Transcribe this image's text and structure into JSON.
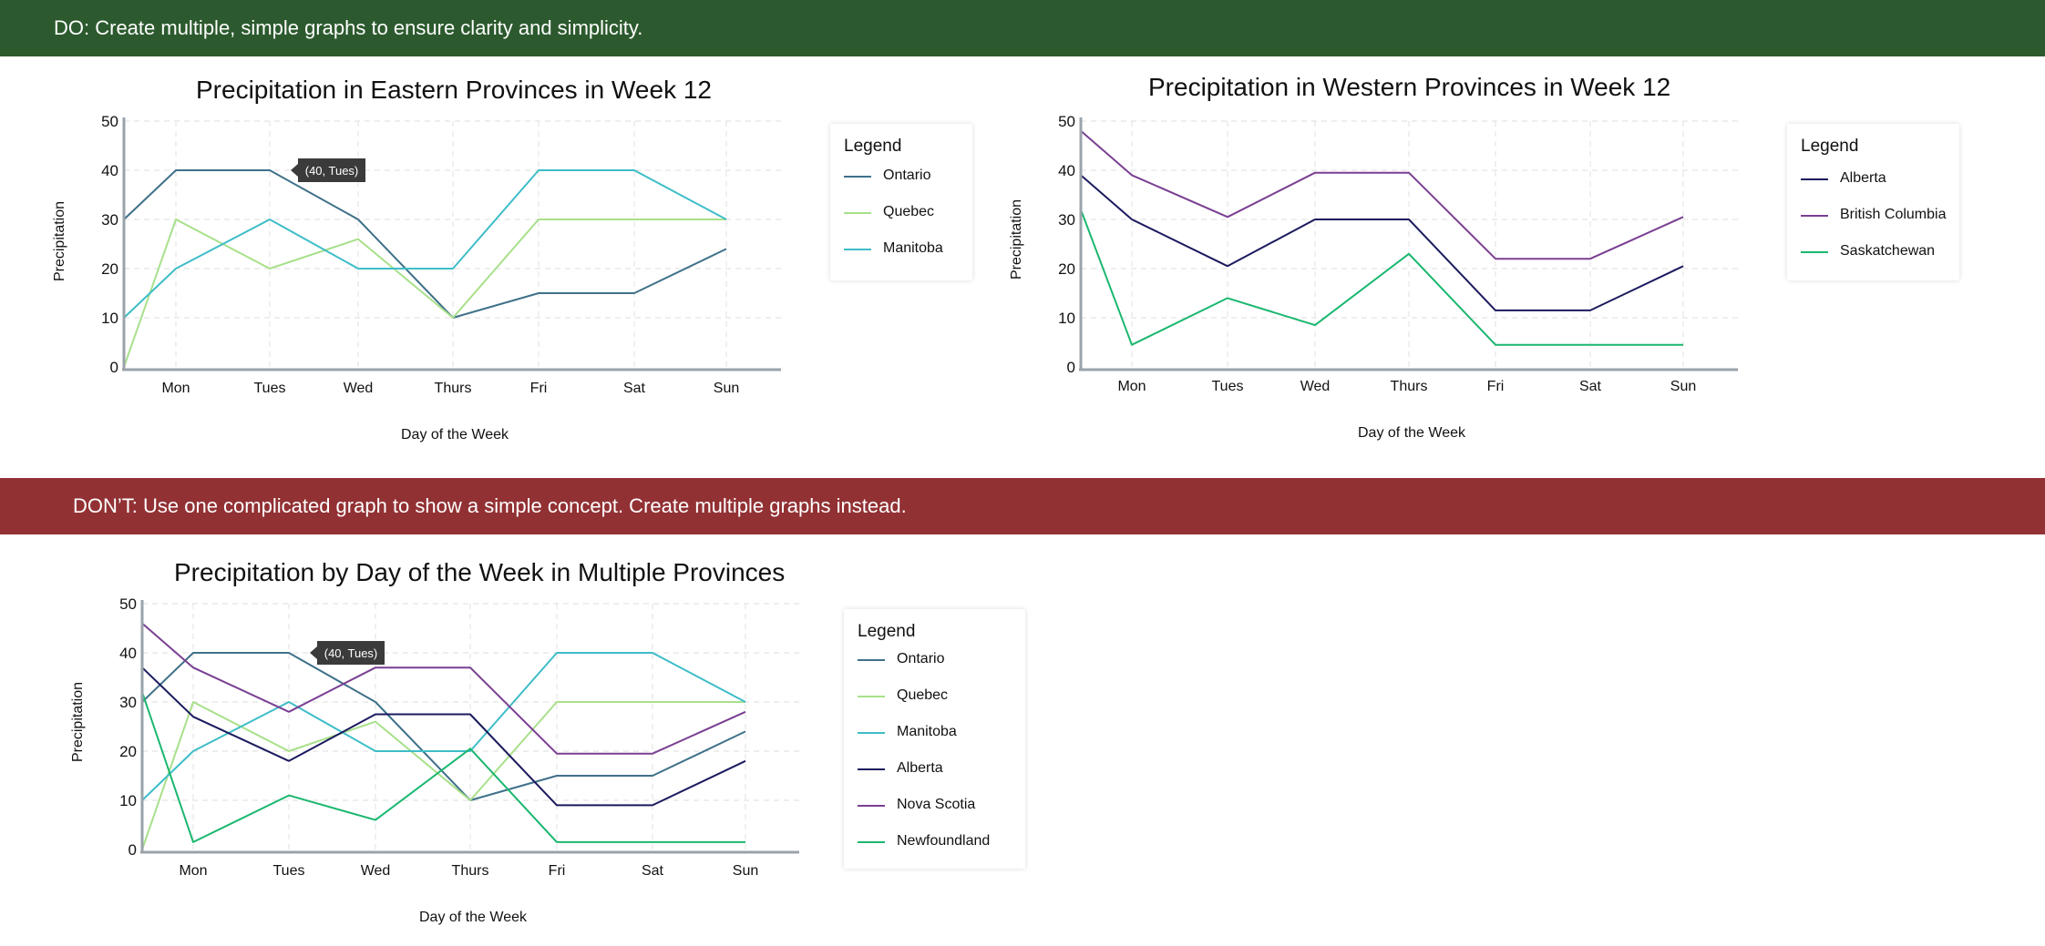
{
  "do_banner": "DO: Create multiple, simple graphs to ensure clarity and simplicity.",
  "dont_banner": "DON’T: Use one complicated graph to show a simple concept. Create multiple graphs instead.",
  "chart_data": [
    {
      "type": "line",
      "title": "Precipitation in Eastern Provinces  in Week 12",
      "xlabel": "Day of the Week",
      "ylabel": "Precipitation",
      "categories": [
        "Mon",
        "Tues",
        "Wed",
        "Thurs",
        "Fri",
        "Sat",
        "Sun"
      ],
      "ylim": [
        0,
        50
      ],
      "yticks": [
        0,
        10,
        20,
        30,
        40,
        50
      ],
      "grid": true,
      "legend": {
        "title": "Legend",
        "position": "right"
      },
      "tooltip": {
        "text": "(40, Tues)",
        "series": "Ontario",
        "category": "Tues"
      },
      "series": [
        {
          "name": "Ontario",
          "color": "#3f7189",
          "start": 30,
          "values": [
            40,
            40,
            30,
            10,
            15,
            15,
            24
          ]
        },
        {
          "name": "Quebec",
          "color": "#a8e08a",
          "start": 0,
          "values": [
            30,
            20,
            26,
            10,
            30,
            30,
            30
          ]
        },
        {
          "name": "Manitoba",
          "color": "#3ebdc8",
          "start": 10,
          "values": [
            20,
            30,
            20,
            20,
            40,
            40,
            30
          ]
        }
      ]
    },
    {
      "type": "line",
      "title": "Precipitation in Western Provinces in Week 12",
      "xlabel": "Day of the Week",
      "ylabel": "Precipitation",
      "categories": [
        "Mon",
        "Tues",
        "Wed",
        "Thurs",
        "Fri",
        "Sat",
        "Sun"
      ],
      "ylim": [
        0,
        50
      ],
      "yticks": [
        0,
        10,
        20,
        30,
        40,
        50
      ],
      "grid": true,
      "legend": {
        "title": "Legend",
        "position": "right"
      },
      "series": [
        {
          "name": "Alberta",
          "color": "#1b1a5e",
          "start": 39,
          "values": [
            30,
            20.5,
            30,
            30,
            11.5,
            11.5,
            20.5
          ]
        },
        {
          "name": "British Columbia",
          "color": "#7a3f92",
          "start": 48,
          "values": [
            39,
            30.5,
            39.5,
            39.5,
            22,
            22,
            30.5
          ]
        },
        {
          "name": "Saskatchewan",
          "color": "#1ab76f",
          "start": 32,
          "values": [
            4.5,
            14,
            8.5,
            23,
            4.5,
            4.5,
            4.5
          ]
        }
      ]
    },
    {
      "type": "line",
      "title": "Precipitation by Day of the Week in Multiple Provinces",
      "xlabel": "Day of the Week",
      "ylabel": "Precipitation",
      "categories": [
        "Mon",
        "Tues",
        "Wed",
        "Thurs",
        "Fri",
        "Sat",
        "Sun"
      ],
      "ylim": [
        0,
        50
      ],
      "yticks": [
        0,
        10,
        20,
        30,
        40,
        50
      ],
      "grid": true,
      "legend": {
        "title": "Legend",
        "position": "right"
      },
      "tooltip": {
        "text": "(40, Tues)",
        "series": "Ontario",
        "category": "Tues"
      },
      "series": [
        {
          "name": "Ontario",
          "color": "#3f7189",
          "start": 30,
          "values": [
            40,
            40,
            30,
            10,
            15,
            15,
            24
          ]
        },
        {
          "name": "Quebec",
          "color": "#a8e08a",
          "start": 0,
          "values": [
            30,
            20,
            26,
            10,
            30,
            30,
            30
          ]
        },
        {
          "name": "Manitoba",
          "color": "#3ebdc8",
          "start": 10,
          "values": [
            20,
            30,
            20,
            20,
            40,
            40,
            30
          ]
        },
        {
          "name": "Alberta",
          "color": "#1b1a5e",
          "start": 37,
          "values": [
            27,
            18,
            27.5,
            27.5,
            9,
            9,
            18
          ]
        },
        {
          "name": "Nova Scotia",
          "color": "#7a3f92",
          "start": 46,
          "values": [
            37,
            28,
            37,
            37,
            19.5,
            19.5,
            28
          ]
        },
        {
          "name": "Newfoundland",
          "color": "#1ab76f",
          "start": 32,
          "values": [
            1.5,
            11,
            6,
            20.5,
            1.5,
            1.5,
            1.5
          ]
        }
      ]
    }
  ]
}
